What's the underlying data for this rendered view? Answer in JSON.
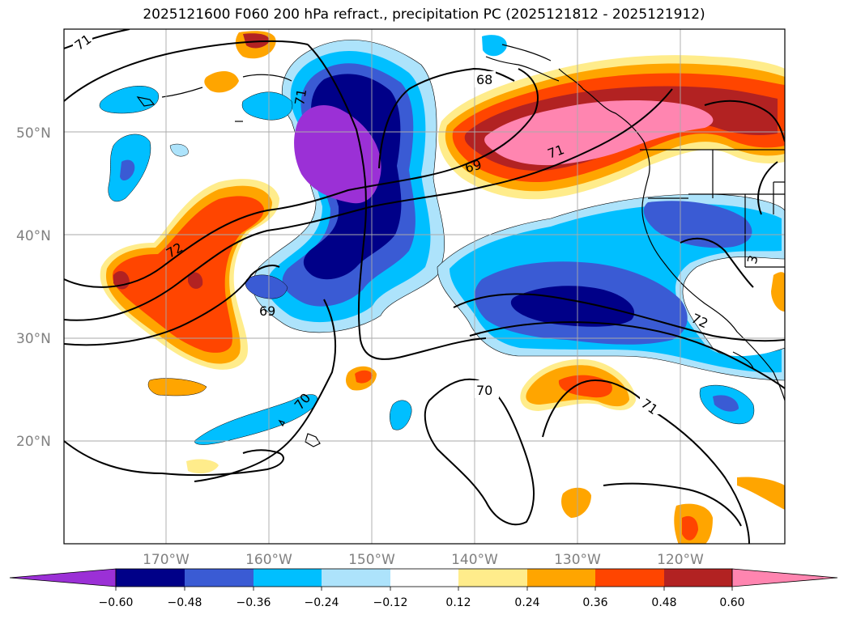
{
  "title": "2025121600 F060 200 hPa refract., precipitation PC (2025121812 - 2025121912)",
  "map": {
    "lat_labels": [
      "50°N",
      "40°N",
      "30°N",
      "20°N"
    ],
    "lon_labels": [
      "170°W",
      "160°W",
      "150°W",
      "140°W",
      "130°W",
      "120°W"
    ],
    "contour_labels": [
      "71",
      "68",
      "71",
      "69",
      "71",
      "72",
      "69",
      "70",
      "70",
      "71",
      "72",
      "3"
    ]
  },
  "colorbar": {
    "ticks": [
      "−0.60",
      "−0.48",
      "−0.36",
      "−0.24",
      "−0.12",
      "0.12",
      "0.24",
      "0.36",
      "0.48",
      "0.60"
    ],
    "colors": {
      "lt_-0.60": "#9b30d6",
      "-0.60_-0.48": "#000088",
      "-0.48_-0.36": "#3a5bd4",
      "-0.36_-0.24": "#00bfff",
      "-0.24_-0.12": "#ade3fb",
      "-0.12_0.12": "#ffffff",
      "0.12_0.24": "#ffec8b",
      "0.24_0.36": "#ffa500",
      "0.36_0.48": "#ff4500",
      "0.48_0.60": "#b22222",
      "gt_0.60": "#ff85b0"
    }
  }
}
